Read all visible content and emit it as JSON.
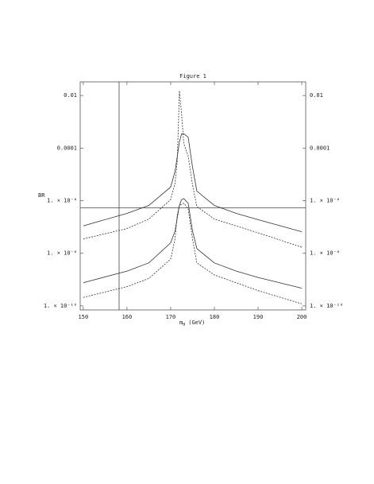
{
  "chart_data": {
    "type": "line",
    "title": "Figure 1",
    "ylabel": "BR",
    "xlabel": {
      "symbol": "m",
      "subscript": "H",
      "unit": "(GeV)"
    },
    "xlim": [
      149.3,
      200.9
    ],
    "xticks": [
      150,
      160,
      170,
      180,
      190,
      200
    ],
    "ylim": [
      7e-11,
      0.033
    ],
    "log_y": true,
    "yticks": [
      0.01,
      0.0001,
      {
        "value": 1e-06,
        "label": "1. × 10⁻⁶"
      },
      {
        "value": 1e-08,
        "label": "1. × 10⁻⁸"
      },
      {
        "value": 1e-10,
        "label": "1. × 10⁻¹⁰"
      }
    ],
    "reference_lines": {
      "x": 158.2,
      "y": 5.4e-07
    },
    "series": [
      {
        "color": "#333333",
        "dash": false,
        "x": [
          150,
          160,
          165,
          170,
          171,
          172,
          172.5,
          173,
          174,
          175,
          176,
          180,
          185,
          190,
          200
        ],
        "values": [
          1.1e-07,
          3.3e-07,
          6.6e-07,
          3.3e-06,
          1.3e-05,
          0.00017,
          0.00035,
          0.00035,
          0.00026,
          1.9e-05,
          2.3e-06,
          6.6e-07,
          3.3e-07,
          1.9e-07,
          6.6e-08
        ]
      },
      {
        "color": "#333333",
        "dash": true,
        "x": [
          150,
          160,
          165,
          170,
          171,
          171.5,
          172,
          172.5,
          173,
          174,
          175,
          176,
          180,
          190,
          200
        ],
        "values": [
          3.5e-08,
          8.7e-08,
          2e-07,
          1.1e-06,
          4.7e-06,
          3e-05,
          0.015,
          0.002,
          0.00015,
          5e-05,
          4e-06,
          6e-07,
          2e-07,
          6e-08,
          1.7e-08
        ]
      },
      {
        "color": "#333333",
        "dash": false,
        "x": [
          150,
          160,
          165,
          170,
          171,
          172,
          172.5,
          173,
          174,
          175,
          176,
          180,
          185,
          190,
          200
        ],
        "values": [
          7.6e-10,
          2.1e-09,
          4.3e-09,
          2.5e-08,
          7e-08,
          6.6e-07,
          1.1e-06,
          1.2e-06,
          8e-07,
          7e-08,
          1.5e-08,
          4.3e-09,
          2.1e-09,
          1.2e-09,
          4.7e-10
        ]
      },
      {
        "color": "#333333",
        "dash": true,
        "x": [
          150,
          160,
          165,
          170,
          171,
          171.5,
          172,
          173,
          174,
          175,
          176,
          180,
          190,
          200
        ],
        "values": [
          2.1e-10,
          5.4e-10,
          1.1e-09,
          6e-09,
          3.5e-08,
          2.8e-07,
          6.6e-07,
          8e-07,
          5e-07,
          3.5e-08,
          4.3e-09,
          1.5e-09,
          3.8e-10,
          1.2e-10
        ]
      }
    ]
  }
}
